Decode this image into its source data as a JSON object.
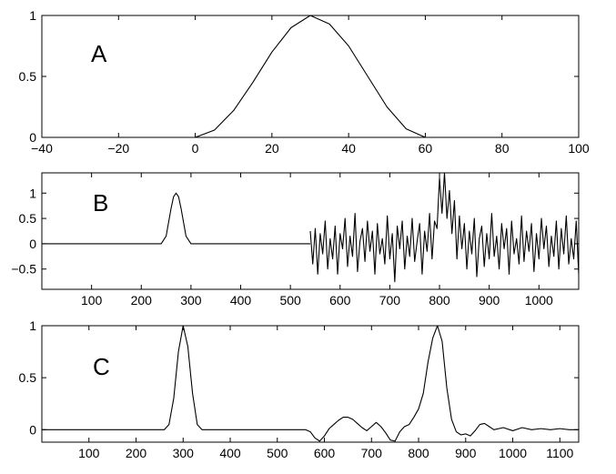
{
  "chart_data": [
    {
      "type": "line",
      "label": "A",
      "xlim": [
        -40,
        100
      ],
      "ylim": [
        0,
        1
      ],
      "xticks": [
        -40,
        -20,
        0,
        20,
        40,
        60,
        80,
        100
      ],
      "xtick_labels": [
        "−40",
        "−20",
        "0",
        "20",
        "40",
        "60",
        "80",
        "100"
      ],
      "yticks": [
        0,
        0.5,
        1
      ],
      "ytick_labels": [
        "0",
        "0.5",
        "1"
      ],
      "grid": false,
      "series": [
        {
          "x": [
            -40,
            0,
            5,
            10,
            15,
            20,
            25,
            30,
            35,
            40,
            45,
            50,
            55,
            60,
            100
          ],
          "y": [
            0,
            0,
            0.06,
            0.22,
            0.45,
            0.7,
            0.9,
            1.0,
            0.93,
            0.75,
            0.5,
            0.25,
            0.07,
            0,
            0
          ]
        }
      ]
    },
    {
      "type": "line",
      "label": "B",
      "xlim": [
        0,
        1080
      ],
      "ylim": [
        -0.9,
        1.4
      ],
      "xticks": [
        100,
        200,
        300,
        400,
        500,
        600,
        700,
        800,
        900,
        1000
      ],
      "xtick_labels": [
        "100",
        "200",
        "300",
        "400",
        "500",
        "600",
        "700",
        "800",
        "900",
        "1000"
      ],
      "yticks": [
        -0.5,
        0,
        0.5,
        1
      ],
      "ytick_labels": [
        "−0.5",
        "0",
        "0.5",
        "1"
      ],
      "grid": false,
      "series": [
        {
          "x": [
            0,
            240,
            250,
            260,
            265,
            270,
            275,
            280,
            290,
            300,
            540
          ],
          "y": [
            0,
            0,
            0.15,
            0.7,
            0.93,
            1.0,
            0.93,
            0.7,
            0.15,
            0,
            0
          ]
        },
        {
          "x": [
            540,
            545,
            550,
            555,
            560,
            565,
            570,
            575,
            580,
            585,
            590,
            595,
            600,
            605,
            610,
            615,
            620,
            625,
            630,
            635,
            640,
            645,
            650,
            655,
            660,
            665,
            670,
            675,
            680,
            685,
            690,
            695,
            700,
            705,
            710,
            715,
            720,
            725,
            730,
            735,
            740,
            745,
            750,
            755,
            760,
            765,
            770,
            775,
            780,
            785,
            790,
            795,
            800,
            805,
            810,
            815,
            820,
            825,
            830,
            835,
            840,
            845,
            850,
            855,
            860,
            865,
            870,
            875,
            880,
            885,
            890,
            895,
            900,
            905,
            910,
            915,
            920,
            925,
            930,
            935,
            940,
            945,
            950,
            955,
            960,
            965,
            970,
            975,
            980,
            985,
            990,
            995,
            1000,
            1005,
            1010,
            1015,
            1020,
            1025,
            1030,
            1035,
            1040,
            1045,
            1050,
            1055,
            1060,
            1065,
            1070,
            1075,
            1080
          ],
          "y": [
            0.25,
            -0.4,
            0.3,
            -0.6,
            0.2,
            -0.2,
            0.45,
            -0.5,
            0.1,
            -0.3,
            0.35,
            -0.6,
            0.2,
            -0.1,
            0.5,
            -0.45,
            0.15,
            -0.25,
            0.6,
            -0.55,
            0.05,
            0.3,
            -0.35,
            0.45,
            -0.15,
            0.25,
            -0.6,
            0.4,
            -0.2,
            0.1,
            -0.4,
            0.55,
            -0.3,
            0.2,
            -0.75,
            0.35,
            -0.1,
            0.45,
            -0.5,
            0.15,
            -0.25,
            0.5,
            -0.35,
            0.05,
            0.4,
            -0.6,
            0.25,
            -0.15,
            0.6,
            -0.3,
            0.45,
            0.3,
            1.3,
            0.6,
            1.4,
            0.5,
            1.05,
            0.2,
            0.85,
            -0.3,
            0.55,
            -0.1,
            0.4,
            -0.5,
            0.25,
            -0.2,
            0.5,
            -0.65,
            0.1,
            0.35,
            -0.45,
            0.2,
            -0.3,
            0.6,
            -0.25,
            0.15,
            -0.5,
            0.4,
            -0.1,
            0.3,
            -0.6,
            0.45,
            -0.2,
            0.1,
            -0.4,
            0.55,
            -0.35,
            0.25,
            -0.15,
            0.4,
            -0.55,
            0.2,
            -0.3,
            0.5,
            -0.1,
            0.35,
            -0.45,
            0.15,
            -0.25,
            0.45,
            -0.5,
            0.3,
            -0.2,
            0.55,
            -0.4,
            0.1,
            -0.3,
            0.45,
            -0.6
          ]
        }
      ]
    },
    {
      "type": "line",
      "label": "C",
      "xlim": [
        0,
        1140
      ],
      "ylim": [
        -0.12,
        1
      ],
      "xticks": [
        100,
        200,
        300,
        400,
        500,
        600,
        700,
        800,
        900,
        1000,
        1100
      ],
      "xtick_labels": [
        "100",
        "200",
        "300",
        "400",
        "500",
        "600",
        "700",
        "800",
        "900",
        "1000",
        "1100"
      ],
      "yticks": [
        0,
        0.5,
        1
      ],
      "ytick_labels": [
        "0",
        "0.5",
        "1"
      ],
      "grid": false,
      "series": [
        {
          "x": [
            0,
            260,
            270,
            280,
            290,
            300,
            310,
            320,
            330,
            340,
            560,
            570,
            580,
            590,
            600,
            610,
            620,
            630,
            640,
            650,
            660,
            670,
            680,
            690,
            700,
            710,
            720,
            730,
            740,
            750,
            760,
            770,
            780,
            790,
            800,
            810,
            820,
            830,
            840,
            850,
            860,
            870,
            880,
            890,
            900,
            910,
            920,
            930,
            940,
            950,
            960,
            980,
            1000,
            1020,
            1040,
            1060,
            1080,
            1100,
            1120,
            1140
          ],
          "y": [
            0,
            0,
            0.05,
            0.3,
            0.75,
            1.0,
            0.8,
            0.35,
            0.05,
            0,
            0,
            -0.02,
            -0.08,
            -0.11,
            -0.06,
            0.01,
            0.05,
            0.09,
            0.12,
            0.12,
            0.1,
            0.06,
            0.02,
            -0.01,
            0.03,
            0.07,
            0.03,
            -0.03,
            -0.1,
            -0.11,
            -0.02,
            0.03,
            0.05,
            0.12,
            0.2,
            0.35,
            0.65,
            0.88,
            1.0,
            0.85,
            0.4,
            0.1,
            -0.02,
            -0.05,
            -0.04,
            -0.06,
            -0.01,
            0.05,
            0.06,
            0.03,
            0.0,
            0.02,
            -0.01,
            0.02,
            0.0,
            0.01,
            0.0,
            0.01,
            0.0,
            0.0
          ]
        }
      ]
    }
  ]
}
